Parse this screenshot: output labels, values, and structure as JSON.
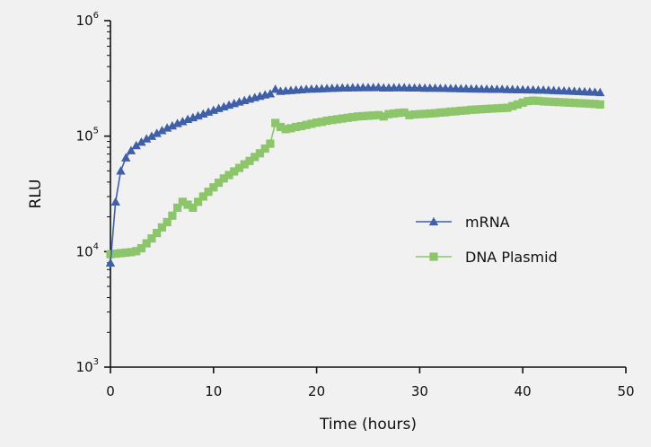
{
  "chart_data": {
    "type": "line",
    "title": "",
    "xlabel": "Time (hours)",
    "ylabel": "RLU",
    "xlim": [
      0,
      50
    ],
    "ylim": [
      1000,
      1000000
    ],
    "y_scale": "log",
    "x_ticks": [
      0,
      10,
      20,
      30,
      40,
      50
    ],
    "y_ticks": [
      {
        "value": 1000,
        "base": "10",
        "exp": "3"
      },
      {
        "value": 10000,
        "base": "10",
        "exp": "4"
      },
      {
        "value": 100000,
        "base": "10",
        "exp": "5"
      },
      {
        "value": 1000000,
        "base": "10",
        "exp": "6"
      }
    ],
    "grid": false,
    "legend_position": "right-center",
    "series": [
      {
        "name": "mRNA",
        "marker": "triangle",
        "color": "#3f5fa8",
        "x": [
          0,
          0.5,
          1,
          1.5,
          2,
          2.5,
          3,
          3.5,
          4,
          4.5,
          5,
          5.5,
          6,
          6.5,
          7,
          7.5,
          8,
          8.5,
          9,
          9.5,
          10,
          10.5,
          11,
          11.5,
          12,
          12.5,
          13,
          13.5,
          14,
          14.5,
          15,
          15.5,
          16,
          16.5,
          17,
          17.5,
          18,
          18.5,
          19,
          19.5,
          20,
          20.5,
          21,
          21.5,
          22,
          22.5,
          23,
          23.5,
          24,
          24.5,
          25,
          25.5,
          26,
          26.5,
          27,
          27.5,
          28,
          28.5,
          29,
          29.5,
          30,
          30.5,
          31,
          31.5,
          32,
          32.5,
          33,
          33.5,
          34,
          34.5,
          35,
          35.5,
          36,
          36.5,
          37,
          37.5,
          38,
          38.5,
          39,
          39.5,
          40,
          40.5,
          41,
          41.5,
          42,
          42.5,
          43,
          43.5,
          44,
          44.5,
          45,
          45.5,
          46,
          46.5,
          47,
          47.5
        ],
        "values": [
          8000,
          27000,
          50000,
          65000,
          75000,
          83000,
          89000,
          95000,
          100000,
          106000,
          112000,
          118000,
          123000,
          129000,
          134000,
          140000,
          145000,
          150000,
          156000,
          162000,
          168000,
          174000,
          180000,
          186000,
          192000,
          198000,
          204000,
          210000,
          216000,
          222000,
          228000,
          233000,
          255000,
          245000,
          247000,
          249000,
          251000,
          253000,
          255000,
          256000,
          257000,
          258000,
          259000,
          260000,
          261000,
          262000,
          262000,
          263000,
          263000,
          264000,
          264000,
          264000,
          265000,
          262000,
          262000,
          263000,
          263000,
          263000,
          262000,
          262000,
          262000,
          261000,
          261000,
          261000,
          260000,
          260000,
          259000,
          259000,
          258000,
          258000,
          257000,
          257000,
          256000,
          256000,
          255000,
          255000,
          255000,
          254000,
          254000,
          253000,
          253000,
          252000,
          252000,
          251000,
          251000,
          250000,
          249000,
          248000,
          247000,
          246000,
          245000,
          244000,
          243000,
          242000,
          241000,
          239000
        ]
      },
      {
        "name": "DNA Plasmid",
        "marker": "square",
        "color": "#8dc66a",
        "x": [
          0,
          0.5,
          1,
          1.5,
          2,
          2.5,
          3,
          3.5,
          4,
          4.5,
          5,
          5.5,
          6,
          6.5,
          7,
          7.5,
          8,
          8.5,
          9,
          9.5,
          10,
          10.5,
          11,
          11.5,
          12,
          12.5,
          13,
          13.5,
          14,
          14.5,
          15,
          15.5,
          16,
          16.5,
          17,
          17.5,
          18,
          18.5,
          19,
          19.5,
          20,
          20.5,
          21,
          21.5,
          22,
          22.5,
          23,
          23.5,
          24,
          24.5,
          25,
          25.5,
          26,
          26.5,
          27,
          27.5,
          28,
          28.5,
          29,
          29.5,
          30,
          30.5,
          31,
          31.5,
          32,
          32.5,
          33,
          33.5,
          34,
          34.5,
          35,
          35.5,
          36,
          36.5,
          37,
          37.5,
          38,
          38.5,
          39,
          39.5,
          40,
          40.5,
          41,
          41.5,
          42,
          42.5,
          43,
          43.5,
          44,
          44.5,
          45,
          45.5,
          46,
          46.5,
          47,
          47.5
        ],
        "values": [
          9500,
          9600,
          9700,
          9800,
          9900,
          10100,
          10700,
          11800,
          13000,
          14500,
          16200,
          18000,
          20500,
          24000,
          27000,
          25500,
          24000,
          27000,
          30000,
          33000,
          36000,
          39500,
          43000,
          46000,
          49500,
          53000,
          57000,
          61000,
          66000,
          71000,
          78000,
          86000,
          130000,
          120000,
          115000,
          117000,
          120000,
          122000,
          125000,
          128000,
          131000,
          133000,
          136000,
          138000,
          140000,
          142000,
          144000,
          146000,
          148000,
          149000,
          150000,
          151000,
          152000,
          148000,
          155000,
          157000,
          159000,
          160000,
          152000,
          154000,
          155000,
          156000,
          157000,
          158000,
          160000,
          161000,
          163000,
          164000,
          166000,
          167000,
          169000,
          170000,
          171000,
          172000,
          173000,
          174000,
          175000,
          176000,
          182000,
          188000,
          195000,
          201000,
          203000,
          202000,
          200000,
          199000,
          198000,
          197000,
          196000,
          195000,
          194000,
          193000,
          192000,
          191000,
          190000,
          188000
        ]
      }
    ]
  }
}
